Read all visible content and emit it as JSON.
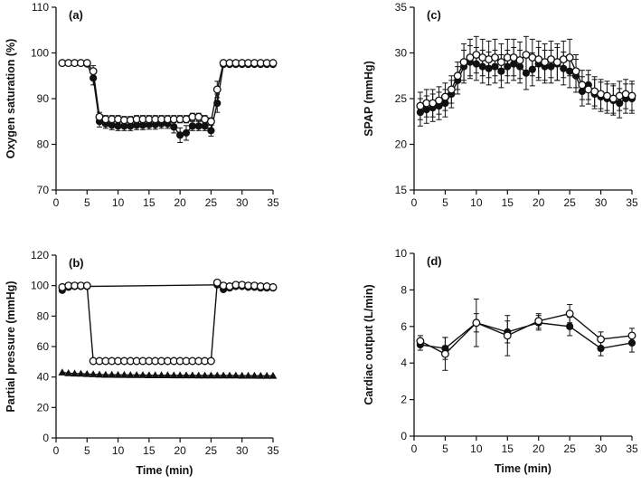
{
  "chart_data": [
    {
      "id": "a",
      "type": "line",
      "panel_label": "(a)",
      "xlabel": "",
      "ylabel": "Oxygen saturation (%)",
      "xlim": [
        0,
        35
      ],
      "ylim": [
        70,
        110
      ],
      "xticks": [
        0,
        5,
        10,
        15,
        20,
        25,
        30,
        35
      ],
      "yticks": [
        70,
        80,
        90,
        100,
        110
      ],
      "series": [
        {
          "name": "filled circles",
          "marker": "circle-filled",
          "x": [
            1,
            2,
            3,
            4,
            5,
            6,
            7,
            8,
            9,
            10,
            11,
            12,
            13,
            14,
            15,
            16,
            17,
            18,
            19,
            20,
            21,
            22,
            23,
            24,
            25,
            26,
            27,
            28,
            29,
            30,
            31,
            32,
            33,
            34,
            35
          ],
          "y": [
            97.8,
            97.8,
            97.8,
            97.8,
            97.6,
            94.5,
            85,
            84.5,
            84.2,
            84,
            84,
            84,
            84.2,
            84.2,
            84.3,
            84.3,
            84.5,
            84.5,
            83.8,
            82,
            82.5,
            84,
            84,
            84,
            83,
            89,
            97.5,
            97.5,
            97.5,
            97.5,
            97.5,
            97.5,
            97.5,
            97.5,
            97.5
          ],
          "err": [
            0.3,
            0.3,
            0.3,
            0.3,
            0.3,
            1.5,
            1.2,
            1,
            1,
            1,
            1,
            1,
            1,
            1,
            1,
            1,
            1,
            1,
            1.3,
            1.6,
            1.6,
            1,
            1,
            1,
            1.2,
            2,
            0.4,
            0.3,
            0.3,
            0.3,
            0.3,
            0.3,
            0.3,
            0.3,
            0.3
          ]
        },
        {
          "name": "open circles",
          "marker": "circle-open",
          "x": [
            1,
            2,
            3,
            4,
            5,
            6,
            7,
            8,
            9,
            10,
            11,
            12,
            13,
            14,
            15,
            16,
            17,
            18,
            19,
            20,
            21,
            22,
            23,
            24,
            25,
            26,
            27,
            28,
            29,
            30,
            31,
            32,
            33,
            34,
            35
          ],
          "y": [
            97.8,
            97.8,
            97.8,
            97.8,
            97.8,
            96,
            86,
            85.5,
            85.5,
            85.5,
            85.3,
            85.3,
            85.5,
            85.5,
            85.5,
            85.5,
            85.5,
            85.5,
            85.5,
            85.5,
            85.5,
            86,
            86,
            85.5,
            85,
            92,
            97.8,
            97.8,
            97.8,
            97.8,
            97.8,
            97.8,
            97.8,
            97.8,
            97.8
          ],
          "err": [
            0.3,
            0.3,
            0.3,
            0.3,
            0.3,
            1.2,
            1,
            0.8,
            0.8,
            0.8,
            0.8,
            0.8,
            0.8,
            0.8,
            0.8,
            0.8,
            0.8,
            0.8,
            0.8,
            0.8,
            0.8,
            0.8,
            0.8,
            0.8,
            0.8,
            1.8,
            0.3,
            0.3,
            0.3,
            0.3,
            0.3,
            0.3,
            0.3,
            0.3,
            0.3
          ]
        }
      ]
    },
    {
      "id": "b",
      "type": "line",
      "panel_label": "(b)",
      "xlabel": "Time (min)",
      "ylabel": "Partial pressure (mmHg)",
      "xlim": [
        0,
        35
      ],
      "ylim": [
        0,
        120
      ],
      "xticks": [
        0,
        5,
        10,
        15,
        20,
        25,
        30,
        35
      ],
      "yticks": [
        0,
        20,
        40,
        60,
        80,
        100,
        120
      ],
      "series": [
        {
          "name": "filled circles",
          "marker": "circle-filled",
          "x": [
            1,
            2,
            3,
            4,
            5,
            26,
            27,
            28,
            29,
            30,
            31,
            32,
            33,
            34,
            35
          ],
          "y": [
            97,
            99,
            99.5,
            99.5,
            99.5,
            100.5,
            97.5,
            98.5,
            99.5,
            99.5,
            99,
            99,
            98.5,
            98.5,
            98.5
          ],
          "err": [
            0,
            0,
            0,
            0,
            0,
            0,
            0,
            0,
            0,
            0,
            0,
            0,
            0,
            0,
            0
          ]
        },
        {
          "name": "open circles",
          "marker": "circle-open",
          "x": [
            1,
            2,
            3,
            4,
            5,
            6,
            7,
            8,
            9,
            10,
            11,
            12,
            13,
            14,
            15,
            16,
            17,
            18,
            19,
            20,
            21,
            22,
            23,
            24,
            25,
            26,
            27,
            28,
            29,
            30,
            31,
            32,
            33,
            34,
            35
          ],
          "y": [
            99,
            100,
            100,
            100,
            100,
            50.5,
            50.5,
            50.5,
            50.5,
            50.5,
            50.5,
            50.5,
            50.5,
            50.5,
            50.5,
            50.5,
            50.5,
            50.5,
            50.5,
            50.5,
            50.5,
            50.5,
            50.5,
            50.5,
            50.5,
            102,
            100,
            99.5,
            100.5,
            100.5,
            100,
            100,
            99.5,
            99.5,
            99
          ],
          "err": [
            0,
            0,
            0,
            0,
            0,
            0,
            0,
            0,
            0,
            0,
            0,
            0,
            0,
            0,
            0,
            0,
            0,
            0,
            0,
            0,
            0,
            0,
            0,
            0,
            0,
            0,
            0,
            0,
            0,
            0,
            0,
            0,
            0,
            0,
            0
          ]
        },
        {
          "name": "filled triangles",
          "marker": "triangle-filled",
          "x": [
            1,
            2,
            3,
            4,
            5,
            6,
            7,
            8,
            9,
            10,
            11,
            12,
            13,
            14,
            15,
            16,
            17,
            18,
            19,
            20,
            21,
            22,
            23,
            24,
            25,
            26,
            27,
            28,
            29,
            30,
            31,
            32,
            33,
            34,
            35
          ],
          "y": [
            43,
            42.5,
            42.3,
            42.2,
            42,
            41.8,
            41.6,
            41.5,
            41.5,
            41.4,
            41.4,
            41.3,
            41.3,
            41.3,
            41.2,
            41.2,
            41.2,
            41.2,
            41.1,
            41.1,
            41.1,
            41.1,
            41,
            41,
            41,
            41,
            41,
            41,
            41,
            40.9,
            40.9,
            40.9,
            40.8,
            40.8,
            40.8
          ],
          "err": [
            0,
            0,
            0,
            0,
            0,
            0,
            0,
            0,
            0,
            0,
            0,
            0,
            0,
            0,
            0,
            0,
            0,
            0,
            0,
            0,
            0,
            0,
            0,
            0,
            0,
            0,
            0,
            0,
            0,
            0,
            0,
            0,
            0,
            0,
            0
          ]
        }
      ]
    },
    {
      "id": "c",
      "type": "line",
      "panel_label": "(c)",
      "xlabel": "",
      "ylabel": "SPAP (mmHg)",
      "xlim": [
        0,
        35
      ],
      "ylim": [
        15,
        35
      ],
      "xticks": [
        0,
        5,
        10,
        15,
        20,
        25,
        30,
        35
      ],
      "yticks": [
        15,
        20,
        25,
        30,
        35
      ],
      "series": [
        {
          "name": "filled circles",
          "marker": "circle-filled",
          "x": [
            1,
            2,
            3,
            4,
            5,
            6,
            7,
            8,
            9,
            10,
            11,
            12,
            13,
            14,
            15,
            16,
            17,
            18,
            19,
            20,
            21,
            22,
            23,
            24,
            25,
            26,
            27,
            28,
            29,
            30,
            31,
            32,
            33,
            34,
            35
          ],
          "y": [
            23.5,
            23.8,
            24,
            24.2,
            24.5,
            25.5,
            27,
            28.5,
            29,
            28.8,
            28.5,
            28.3,
            28.5,
            28,
            28.5,
            28.8,
            28.5,
            27.8,
            28.2,
            28.8,
            28.5,
            28.5,
            28.8,
            28.3,
            28,
            27.5,
            25.8,
            26.5,
            25.5,
            25.2,
            25,
            24.8,
            24.5,
            25,
            25
          ],
          "err": [
            1.5,
            1.5,
            1.5,
            1.5,
            1.5,
            1.5,
            1.5,
            1.8,
            1.8,
            1.8,
            1.8,
            1.8,
            1.8,
            1.8,
            1.8,
            1.8,
            1.8,
            1.8,
            1.8,
            1.8,
            1.8,
            1.8,
            1.8,
            1.8,
            1.8,
            1.8,
            1.6,
            1.6,
            1.6,
            1.6,
            1.6,
            1.6,
            1.6,
            1.6,
            1.6
          ]
        },
        {
          "name": "open circles",
          "marker": "circle-open",
          "x": [
            1,
            2,
            3,
            4,
            5,
            6,
            7,
            8,
            9,
            10,
            11,
            12,
            13,
            14,
            15,
            16,
            17,
            18,
            19,
            20,
            21,
            22,
            23,
            24,
            25,
            26,
            27,
            28,
            29,
            30,
            31,
            32,
            33,
            34,
            35
          ],
          "y": [
            24.2,
            24.5,
            24.5,
            24.8,
            25.2,
            26,
            27.5,
            29,
            29.5,
            29.8,
            29.5,
            29.3,
            29.5,
            29,
            29.5,
            29.5,
            29.2,
            29.8,
            29.5,
            29.3,
            29,
            29.3,
            29,
            29.3,
            29.5,
            28,
            26.5,
            26,
            25.8,
            25.5,
            25.3,
            25,
            25.3,
            25.5,
            25.3
          ],
          "err": [
            1.5,
            1.5,
            1.5,
            1.5,
            1.5,
            1.5,
            1.5,
            2,
            2,
            2,
            2,
            2,
            2,
            2,
            2,
            2,
            2,
            2,
            2,
            2,
            2,
            2,
            2,
            2,
            2,
            1.8,
            1.6,
            1.6,
            1.6,
            1.6,
            1.6,
            1.6,
            1.6,
            1.6,
            1.6
          ]
        }
      ]
    },
    {
      "id": "d",
      "type": "line",
      "panel_label": "(d)",
      "xlabel": "Time (min)",
      "ylabel": "Cardiac output (L/min)",
      "xlim": [
        0,
        35
      ],
      "ylim": [
        0,
        10
      ],
      "xticks": [
        0,
        5,
        10,
        15,
        20,
        25,
        30,
        35
      ],
      "yticks": [
        0,
        2,
        4,
        6,
        8,
        10
      ],
      "series": [
        {
          "name": "filled circles",
          "marker": "circle-filled",
          "x": [
            1,
            5,
            10,
            15,
            20,
            25,
            30,
            35
          ],
          "y": [
            5.0,
            4.8,
            6.2,
            5.7,
            6.2,
            6.0,
            4.8,
            5.1
          ],
          "err": [
            0.3,
            0.6,
            0.5,
            0.6,
            0.4,
            0.5,
            0.4,
            0.5
          ]
        },
        {
          "name": "open circles",
          "marker": "circle-open",
          "x": [
            1,
            5,
            10,
            15,
            20,
            25,
            30,
            35
          ],
          "y": [
            5.2,
            4.5,
            6.2,
            5.5,
            6.3,
            6.7,
            5.3,
            5.5
          ],
          "err": [
            0.3,
            0.9,
            1.3,
            1.1,
            0.4,
            0.5,
            0.4,
            0.4
          ]
        }
      ]
    }
  ]
}
